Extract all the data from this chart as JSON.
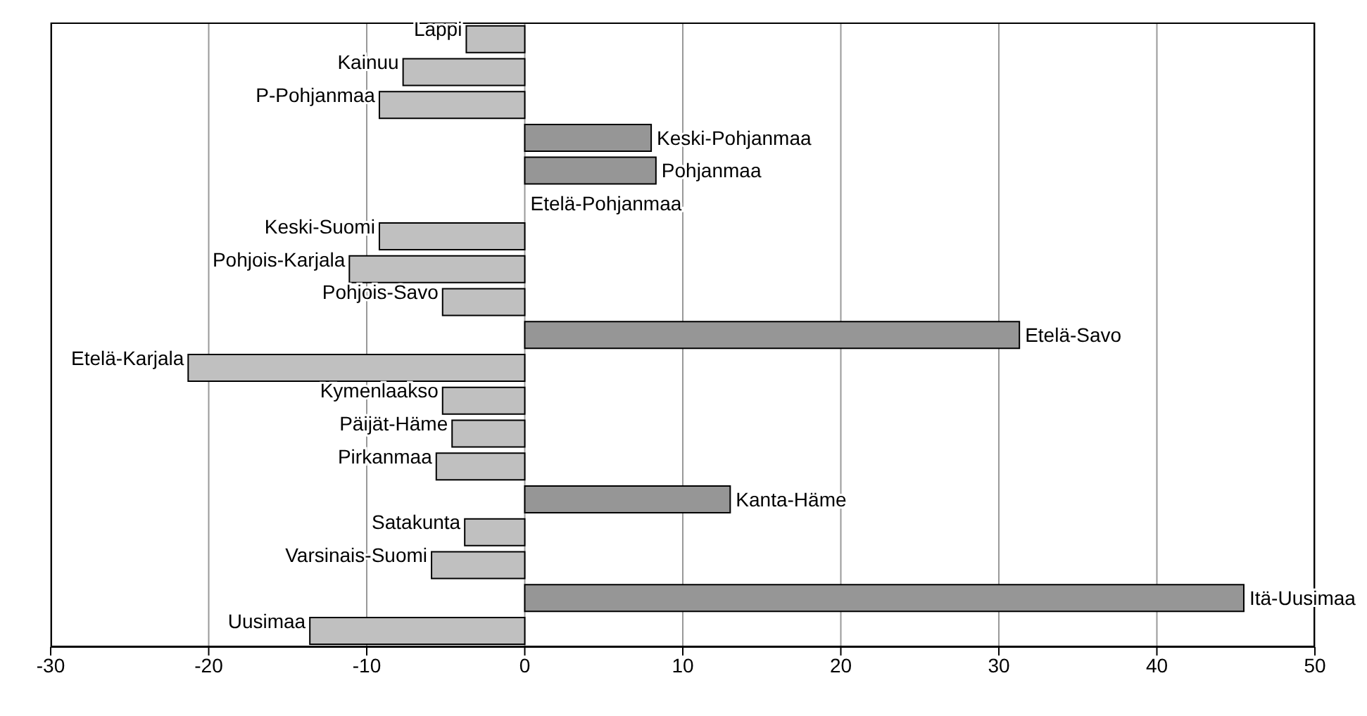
{
  "chart_data": {
    "type": "bar",
    "orientation": "horizontal",
    "categories": [
      "Lappi",
      "Kainuu",
      "P-Pohjanmaa",
      "Keski-Pohjanmaa",
      "Pohjanmaa",
      "Etelä-Pohjanmaa",
      "Keski-Suomi",
      "Pohjois-Karjala",
      "Pohjois-Savo",
      "Etelä-Savo",
      "Etelä-Karjala",
      "Kymenlaakso",
      "Päijät-Häme",
      "Pirkanmaa",
      "Kanta-Häme",
      "Satakunta",
      "Varsinais-Suomi",
      "Itä-Uusimaa",
      "Uusimaa"
    ],
    "values": [
      -3.7,
      -7.7,
      -9.2,
      8.0,
      8.3,
      0,
      -9.2,
      -11.1,
      -5.2,
      31.3,
      -21.3,
      -5.2,
      -4.6,
      -5.6,
      13.0,
      -3.8,
      -5.9,
      45.5,
      -13.6
    ],
    "colors": [
      "#c0c0c0",
      "#c0c0c0",
      "#c0c0c0",
      "#969696",
      "#969696",
      "#c0c0c0",
      "#c0c0c0",
      "#c0c0c0",
      "#c0c0c0",
      "#969696",
      "#c0c0c0",
      "#c0c0c0",
      "#c0c0c0",
      "#c0c0c0",
      "#969696",
      "#c0c0c0",
      "#c0c0c0",
      "#969696",
      "#c0c0c0"
    ],
    "xlim": [
      -30,
      50
    ],
    "xticks": [
      -30,
      -20,
      -10,
      0,
      10,
      20,
      30,
      40,
      50
    ],
    "grid": "x"
  }
}
